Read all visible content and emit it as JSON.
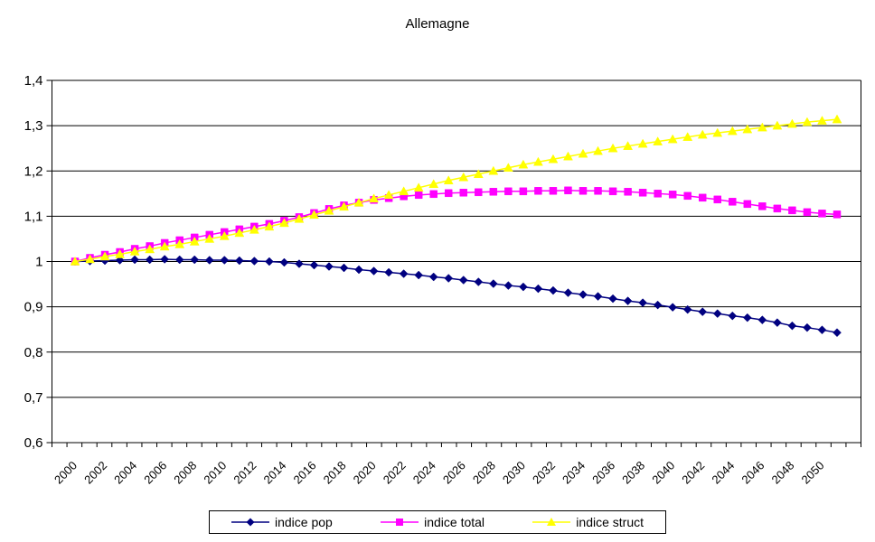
{
  "chart_data": {
    "type": "line",
    "title": "Allemagne",
    "xlabel": "",
    "ylabel": "",
    "ylim": [
      0.6,
      1.4
    ],
    "y_gridline_step": 0.1,
    "grid": "horizontal-only",
    "legend_position": "bottom-center",
    "background_color": "#FFFFFF",
    "axis_color": "#000000",
    "decimal_separator": ",",
    "y_tick_labels": [
      "1,4",
      "1,3",
      "1,2",
      "1,1",
      "1",
      "0,9",
      "0,8",
      "0,7",
      "0,6"
    ],
    "y_tick_values": [
      1.4,
      1.3,
      1.2,
      1.1,
      1.0,
      0.9,
      0.8,
      0.7,
      0.6
    ],
    "x_tick_labels": [
      "2000",
      "2002",
      "2004",
      "2006",
      "2008",
      "2010",
      "2012",
      "2014",
      "2016",
      "2018",
      "2020",
      "2022",
      "2024",
      "2026",
      "2028",
      "2030",
      "2032",
      "2034",
      "2036",
      "2038",
      "2040",
      "2042",
      "2044",
      "2046",
      "2048",
      "2050"
    ],
    "x": [
      2000,
      2001,
      2002,
      2003,
      2004,
      2005,
      2006,
      2007,
      2008,
      2009,
      2010,
      2011,
      2012,
      2013,
      2014,
      2015,
      2016,
      2017,
      2018,
      2019,
      2020,
      2021,
      2022,
      2023,
      2024,
      2025,
      2026,
      2027,
      2028,
      2029,
      2030,
      2031,
      2032,
      2033,
      2034,
      2035,
      2036,
      2037,
      2038,
      2039,
      2040,
      2041,
      2042,
      2043,
      2044,
      2045,
      2046,
      2047,
      2048,
      2049,
      2050,
      2051
    ],
    "series": [
      {
        "name": "indice pop",
        "color": "#000080",
        "marker": "diamond",
        "values": [
          1.0,
          1.001,
          1.002,
          1.003,
          1.004,
          1.004,
          1.005,
          1.004,
          1.004,
          1.003,
          1.003,
          1.002,
          1.001,
          1.0,
          0.998,
          0.995,
          0.992,
          0.989,
          0.986,
          0.982,
          0.979,
          0.976,
          0.973,
          0.97,
          0.966,
          0.963,
          0.959,
          0.955,
          0.951,
          0.947,
          0.944,
          0.94,
          0.936,
          0.931,
          0.927,
          0.923,
          0.918,
          0.913,
          0.909,
          0.904,
          0.899,
          0.894,
          0.889,
          0.885,
          0.88,
          0.876,
          0.871,
          0.865,
          0.858,
          0.854,
          0.849,
          0.843
        ]
      },
      {
        "name": "indice total",
        "color": "#FF00FF",
        "marker": "square",
        "values": [
          1.0,
          1.008,
          1.015,
          1.021,
          1.028,
          1.034,
          1.041,
          1.047,
          1.053,
          1.059,
          1.065,
          1.071,
          1.077,
          1.083,
          1.09,
          1.098,
          1.107,
          1.116,
          1.124,
          1.13,
          1.136,
          1.14,
          1.144,
          1.147,
          1.149,
          1.151,
          1.152,
          1.153,
          1.154,
          1.155,
          1.155,
          1.156,
          1.156,
          1.157,
          1.156,
          1.156,
          1.155,
          1.154,
          1.152,
          1.15,
          1.148,
          1.145,
          1.141,
          1.137,
          1.132,
          1.127,
          1.122,
          1.117,
          1.113,
          1.109,
          1.106,
          1.104
        ]
      },
      {
        "name": "indice struct",
        "color": "#FFFF00",
        "marker": "triangle",
        "values": [
          1.0,
          1.005,
          1.011,
          1.016,
          1.022,
          1.027,
          1.033,
          1.038,
          1.044,
          1.05,
          1.056,
          1.063,
          1.07,
          1.077,
          1.085,
          1.094,
          1.103,
          1.112,
          1.121,
          1.13,
          1.139,
          1.147,
          1.155,
          1.163,
          1.171,
          1.179,
          1.186,
          1.193,
          1.2,
          1.207,
          1.214,
          1.22,
          1.226,
          1.232,
          1.238,
          1.244,
          1.25,
          1.255,
          1.26,
          1.265,
          1.27,
          1.275,
          1.28,
          1.284,
          1.288,
          1.292,
          1.296,
          1.3,
          1.304,
          1.308,
          1.311,
          1.314
        ]
      }
    ]
  }
}
